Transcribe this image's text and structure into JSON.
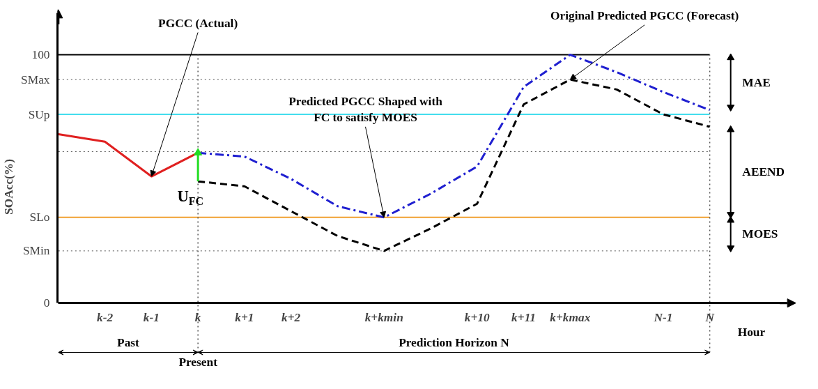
{
  "chart_data": {
    "type": "line",
    "ylabel": "SOAcc(%)",
    "xlabel": "Hour",
    "ylim": [
      0,
      117
    ],
    "categories": [
      null,
      "k-2",
      "k-1",
      "k",
      "k+1",
      "k+2",
      null,
      "k+kmin",
      null,
      "k+10",
      "k+11",
      "k+kmax",
      null,
      "N-1",
      "N"
    ],
    "yticks": [
      0,
      {
        "value": 21,
        "label": "SMin"
      },
      {
        "value": 34.5,
        "label": "SLo"
      },
      {
        "value": 76,
        "label": "SUp"
      },
      {
        "value": 90,
        "label": "SMax"
      },
      100
    ],
    "grid": false,
    "marker": "none",
    "series": [
      {
        "color": "#e02020",
        "line_style": "solid",
        "values": [
          68,
          65,
          51,
          60.5,
          null,
          null,
          null,
          null,
          null,
          null,
          null,
          null,
          null,
          null,
          null
        ]
      },
      {
        "color": "#1f1fd0",
        "line_style": "dashdot",
        "values": [
          null,
          null,
          null,
          60.5,
          59,
          50,
          39,
          34.5,
          44,
          55,
          87,
          100,
          93,
          85,
          77.7
        ]
      },
      {
        "color": "#000000",
        "line_style": "dashed",
        "values": [
          null,
          null,
          null,
          49,
          47,
          37,
          27,
          21,
          30,
          40,
          80,
          90,
          86,
          76,
          71
        ]
      },
      {
        "color": "#22dd22",
        "line_style": "solid",
        "marker": "triangle",
        "x": [
          "k",
          "k"
        ],
        "values": [
          49,
          60.5
        ]
      }
    ],
    "ref_lines": [
      {
        "axis": "y",
        "value": 100,
        "color": "#000000",
        "line_style": "solid"
      },
      {
        "axis": "y",
        "value": 90,
        "color": "#555555",
        "line_style": "dotted"
      },
      {
        "axis": "y",
        "value": 76,
        "color": "#44ddee",
        "line_style": "solid"
      },
      {
        "axis": "y",
        "value": 61,
        "color": "#555555",
        "line_style": "dotted"
      },
      {
        "axis": "y",
        "value": 34.5,
        "color": "#f0a030",
        "line_style": "solid"
      },
      {
        "axis": "y",
        "value": 21,
        "color": "#555555",
        "line_style": "dotted"
      },
      {
        "axis": "x",
        "value": "k",
        "color": "#555555",
        "line_style": "dotted"
      },
      {
        "axis": "x",
        "value": "N",
        "color": "#555555",
        "line_style": "dotted"
      }
    ],
    "annotations": [
      {
        "text": "PGCC (Actual)",
        "x": "k-1",
        "y": 51
      },
      {
        "text": "Predicted PGCC Shaped with\nFC to satisfy MOES",
        "x": "k+kmin",
        "y": 34.5
      },
      {
        "text": "Original Predicted PGCC (Forecast)",
        "x": "k+kmax",
        "y": 90
      },
      "U$_{FC}$",
      "MAE",
      "AEEND",
      "MOES",
      "Past",
      "Prediction Horizon N",
      "Present"
    ]
  }
}
